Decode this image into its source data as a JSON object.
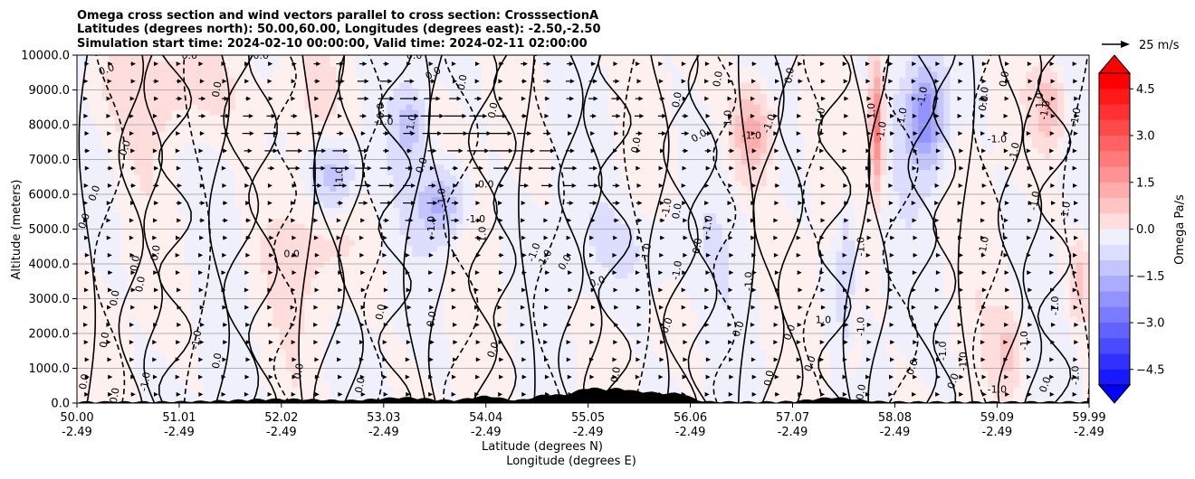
{
  "chart_data": {
    "type": "filled-contour cross section with wind vectors",
    "title_lines": [
      "Omega cross section and wind vectors parallel to cross section: CrosssectionA",
      "Latitudes (degrees north): 50.00,60.00, Longitudes (degrees east): -2.50,-2.50",
      "Simulation start time: 2024-02-10 00:00:00, Valid time: 2024-02-11 02:00:00"
    ],
    "ylabel": "Altitude (meters)",
    "xlabel_lat": "Latitude (degrees N)",
    "xlabel_lon": "Longitude (degrees E)",
    "ylim": [
      0,
      10000
    ],
    "y_ticks": [
      "0.0",
      "1000.0",
      "2000.0",
      "3000.0",
      "4000.0",
      "5000.0",
      "6000.0",
      "7000.0",
      "8000.0",
      "9000.0",
      "10000.0"
    ],
    "y_tick_values": [
      0,
      1000,
      2000,
      3000,
      4000,
      5000,
      6000,
      7000,
      8000,
      9000,
      10000
    ],
    "grid": "horizontal",
    "x_range": [
      0,
      9.9
    ],
    "x_ticks": [
      {
        "lat": "50.00",
        "lon": "-2.49",
        "t": 0
      },
      {
        "lat": "51.01",
        "lon": "-2.49",
        "t": 1
      },
      {
        "lat": "52.02",
        "lon": "-2.49",
        "t": 2
      },
      {
        "lat": "53.03",
        "lon": "-2.49",
        "t": 3
      },
      {
        "lat": "54.04",
        "lon": "-2.49",
        "t": 4
      },
      {
        "lat": "55.05",
        "lon": "-2.49",
        "t": 5
      },
      {
        "lat": "56.06",
        "lon": "-2.49",
        "t": 6
      },
      {
        "lat": "57.07",
        "lon": "-2.49",
        "t": 7
      },
      {
        "lat": "58.08",
        "lon": "-2.49",
        "t": 8
      },
      {
        "lat": "59.09",
        "lon": "-2.49",
        "t": 9
      },
      {
        "lat": "59.99",
        "lon": "-2.49",
        "t": 9.9
      }
    ],
    "colorbar": {
      "label": "Omega Pa/s",
      "range": [
        -5,
        5
      ],
      "tick_labels": [
        "4.5",
        "3.0",
        "1.5",
        "0.0",
        "−1.5",
        "−3.0",
        "−4.5"
      ],
      "tick_values": [
        4.5,
        3.0,
        1.5,
        0.0,
        -1.5,
        -3.0,
        -4.5
      ],
      "extend": "both",
      "colormap": "bwr"
    },
    "quiver_key": {
      "label": "25 m/s"
    },
    "contour_levels": [
      -1.0,
      0.0,
      1.0
    ],
    "contour_labels": [
      {
        "text": "0.0",
        "t": 0.3,
        "z": 9500,
        "r": -20
      },
      {
        "text": "0.0",
        "t": 1.1,
        "z": 9900,
        "r": 0
      },
      {
        "text": "0.0",
        "t": 1.8,
        "z": 9900,
        "r": 0
      },
      {
        "text": "0.0",
        "t": 3.3,
        "z": 9900,
        "r": 0
      },
      {
        "text": "0.0",
        "t": 3.5,
        "z": 9400,
        "r": -30
      },
      {
        "text": "0.0",
        "t": 0.5,
        "z": 7300,
        "r": -70
      },
      {
        "text": "0.0",
        "t": 0.2,
        "z": 6000,
        "r": -70
      },
      {
        "text": "0.0",
        "t": 0.1,
        "z": 5200,
        "r": -70
      },
      {
        "text": "0.0",
        "t": 0.8,
        "z": 4300,
        "r": -80
      },
      {
        "text": "0.0",
        "t": 0.6,
        "z": 4000,
        "r": -80
      },
      {
        "text": "0.0",
        "t": 0.65,
        "z": 3400,
        "r": -80
      },
      {
        "text": "0.0",
        "t": 0.4,
        "z": 3000,
        "r": -80
      },
      {
        "text": "0.0",
        "t": 0.3,
        "z": 1800,
        "r": -80
      },
      {
        "text": "0.0",
        "t": 0.1,
        "z": 600,
        "r": -80
      },
      {
        "text": "0.0",
        "t": 0.4,
        "z": 200,
        "r": -80
      },
      {
        "text": "0.0",
        "t": 1.4,
        "z": 9000,
        "r": -80
      },
      {
        "text": "-1.0",
        "t": 3.0,
        "z": 8000,
        "r": 0
      },
      {
        "text": "-1.0",
        "t": 3.3,
        "z": 8000,
        "r": -80
      },
      {
        "text": "-1.0",
        "t": 2.6,
        "z": 6500,
        "r": -90
      },
      {
        "text": "-1.0",
        "t": 3.6,
        "z": 5900,
        "r": -90
      },
      {
        "text": "-1.0",
        "t": 3.9,
        "z": 5200,
        "r": 0
      },
      {
        "text": "-1.0",
        "t": 4.0,
        "z": 4800,
        "r": -90
      },
      {
        "text": "-1.0",
        "t": 3.5,
        "z": 5100,
        "r": -90
      },
      {
        "text": "0.0",
        "t": 4.0,
        "z": 6200,
        "r": 0
      },
      {
        "text": "0.0",
        "t": 3.4,
        "z": 6800,
        "r": -70
      },
      {
        "text": "0.0",
        "t": 3.0,
        "z": 8400,
        "r": -90
      },
      {
        "text": "0.0",
        "t": 4.1,
        "z": 8400,
        "r": -80
      },
      {
        "text": "0.0",
        "t": 3.8,
        "z": 9200,
        "r": -80
      },
      {
        "text": "0.0",
        "t": 2.1,
        "z": 4200,
        "r": 0
      },
      {
        "text": "-1.0",
        "t": 4.6,
        "z": 4100,
        "r": -60
      },
      {
        "text": "-1.0",
        "t": 4.5,
        "z": 4300,
        "r": -70
      },
      {
        "text": "0.0",
        "t": 5.1,
        "z": 3400,
        "r": -20
      },
      {
        "text": "0.0",
        "t": 4.8,
        "z": 4000,
        "r": -60
      },
      {
        "text": "0.0",
        "t": 5.5,
        "z": 7400,
        "r": -80
      },
      {
        "text": "0.0",
        "t": 5.9,
        "z": 8700,
        "r": -80
      },
      {
        "text": "0.0",
        "t": 6.1,
        "z": 7600,
        "r": -30
      },
      {
        "text": "-1.0",
        "t": 6.6,
        "z": 7600,
        "r": 0
      },
      {
        "text": "-1.0",
        "t": 5.8,
        "z": 5600,
        "r": -80
      },
      {
        "text": "-1.0",
        "t": 6.2,
        "z": 5100,
        "r": -80
      },
      {
        "text": "-1.0",
        "t": 5.9,
        "z": 3800,
        "r": -80
      },
      {
        "text": "-1.0",
        "t": 5.6,
        "z": 4300,
        "r": -80
      },
      {
        "text": "0.0",
        "t": 5.9,
        "z": 5500,
        "r": -80
      },
      {
        "text": "0.0",
        "t": 6.1,
        "z": 4500,
        "r": -80
      },
      {
        "text": "0.0",
        "t": 6.3,
        "z": 9300,
        "r": -80
      },
      {
        "text": "0.0",
        "t": 7.0,
        "z": 9400,
        "r": -80
      },
      {
        "text": "-1.0",
        "t": 6.8,
        "z": 8000,
        "r": -70
      },
      {
        "text": "-1.0",
        "t": 7.3,
        "z": 8200,
        "r": -80
      },
      {
        "text": "-1.0",
        "t": 7.9,
        "z": 7800,
        "r": -80
      },
      {
        "text": "-1.0",
        "t": 8.3,
        "z": 8800,
        "r": -80
      },
      {
        "text": "-1.0",
        "t": 8.1,
        "z": 8200,
        "r": -80
      },
      {
        "text": "-1.0",
        "t": 9.0,
        "z": 7500,
        "r": 0
      },
      {
        "text": "-1.0",
        "t": 8.9,
        "z": 8800,
        "r": -80
      },
      {
        "text": "-1.0",
        "t": 9.2,
        "z": 7200,
        "r": -80
      },
      {
        "text": "-1.0",
        "t": 9.5,
        "z": 8400,
        "r": -80
      },
      {
        "text": "-1.0",
        "t": 9.8,
        "z": 8200,
        "r": -80
      },
      {
        "text": "-1.0",
        "t": 9.4,
        "z": 5800,
        "r": -80
      },
      {
        "text": "-1.0",
        "t": 9.7,
        "z": 5500,
        "r": -80
      },
      {
        "text": "-1.0",
        "t": 8.9,
        "z": 4500,
        "r": -80
      },
      {
        "text": "-1.0",
        "t": 6.6,
        "z": 3500,
        "r": -90
      },
      {
        "text": "-1.0",
        "t": 7.7,
        "z": 4500,
        "r": -90
      },
      {
        "text": "-1.0",
        "t": 7.7,
        "z": 2200,
        "r": -90
      },
      {
        "text": "1.0",
        "t": 7.3,
        "z": 2300,
        "r": 0
      },
      {
        "text": "-1.0",
        "t": 8.5,
        "z": 1500,
        "r": -90
      },
      {
        "text": "-1.0",
        "t": 8.7,
        "z": 1200,
        "r": -90
      },
      {
        "text": "-1.0",
        "t": 9.0,
        "z": 300,
        "r": 0
      },
      {
        "text": "-1.0",
        "t": 9.3,
        "z": 1800,
        "r": -90
      },
      {
        "text": "-1.0",
        "t": 9.6,
        "z": 2800,
        "r": -90
      },
      {
        "text": "-1.0",
        "t": 9.8,
        "z": 800,
        "r": -90
      },
      {
        "text": "0.0",
        "t": 8.6,
        "z": 600,
        "r": -70
      },
      {
        "text": "0.0",
        "t": 9.5,
        "z": 500,
        "r": -70
      },
      {
        "text": "0.0",
        "t": 8.2,
        "z": 1000,
        "r": -70
      },
      {
        "text": "0.0",
        "t": 7.2,
        "z": 1100,
        "r": -70
      },
      {
        "text": "0.0",
        "t": 7.0,
        "z": 2000,
        "r": -70
      },
      {
        "text": "0.0",
        "t": 6.5,
        "z": 2100,
        "r": -70
      },
      {
        "text": "0.0",
        "t": 5.8,
        "z": 2200,
        "r": -70
      },
      {
        "text": "0.0",
        "t": 4.1,
        "z": 1500,
        "r": -70
      },
      {
        "text": "0.0",
        "t": 3.0,
        "z": 2600,
        "r": -80
      },
      {
        "text": "0.0",
        "t": 3.5,
        "z": 2400,
        "r": -80
      },
      {
        "text": "0.0",
        "t": 1.4,
        "z": 1200,
        "r": -80
      },
      {
        "text": "-1.0",
        "t": 1.2,
        "z": 1800,
        "r": -80
      },
      {
        "text": "0.0",
        "t": 2.2,
        "z": 900,
        "r": -80
      },
      {
        "text": "0.0",
        "t": 2.8,
        "z": 500,
        "r": -80
      },
      {
        "text": "-1.0",
        "t": 0.7,
        "z": 600,
        "r": -80
      },
      {
        "text": "0.0",
        "t": 5.3,
        "z": 800,
        "r": -80
      },
      {
        "text": "0.0",
        "t": 6.8,
        "z": 700,
        "r": -80
      },
      {
        "text": "0.0",
        "t": 7.7,
        "z": 300,
        "r": -80
      },
      {
        "text": "0.0",
        "t": 8.9,
        "z": 8600,
        "r": -80
      },
      {
        "text": "0.0",
        "t": 9.1,
        "z": 9300,
        "r": -80
      },
      {
        "text": "1.0",
        "t": 9.45,
        "z": 8700,
        "r": -90
      },
      {
        "text": "1.0",
        "t": 6.4,
        "z": 8200,
        "r": -90
      },
      {
        "text": "1.0",
        "t": 7.8,
        "z": 8400,
        "r": -90
      }
    ]
  }
}
